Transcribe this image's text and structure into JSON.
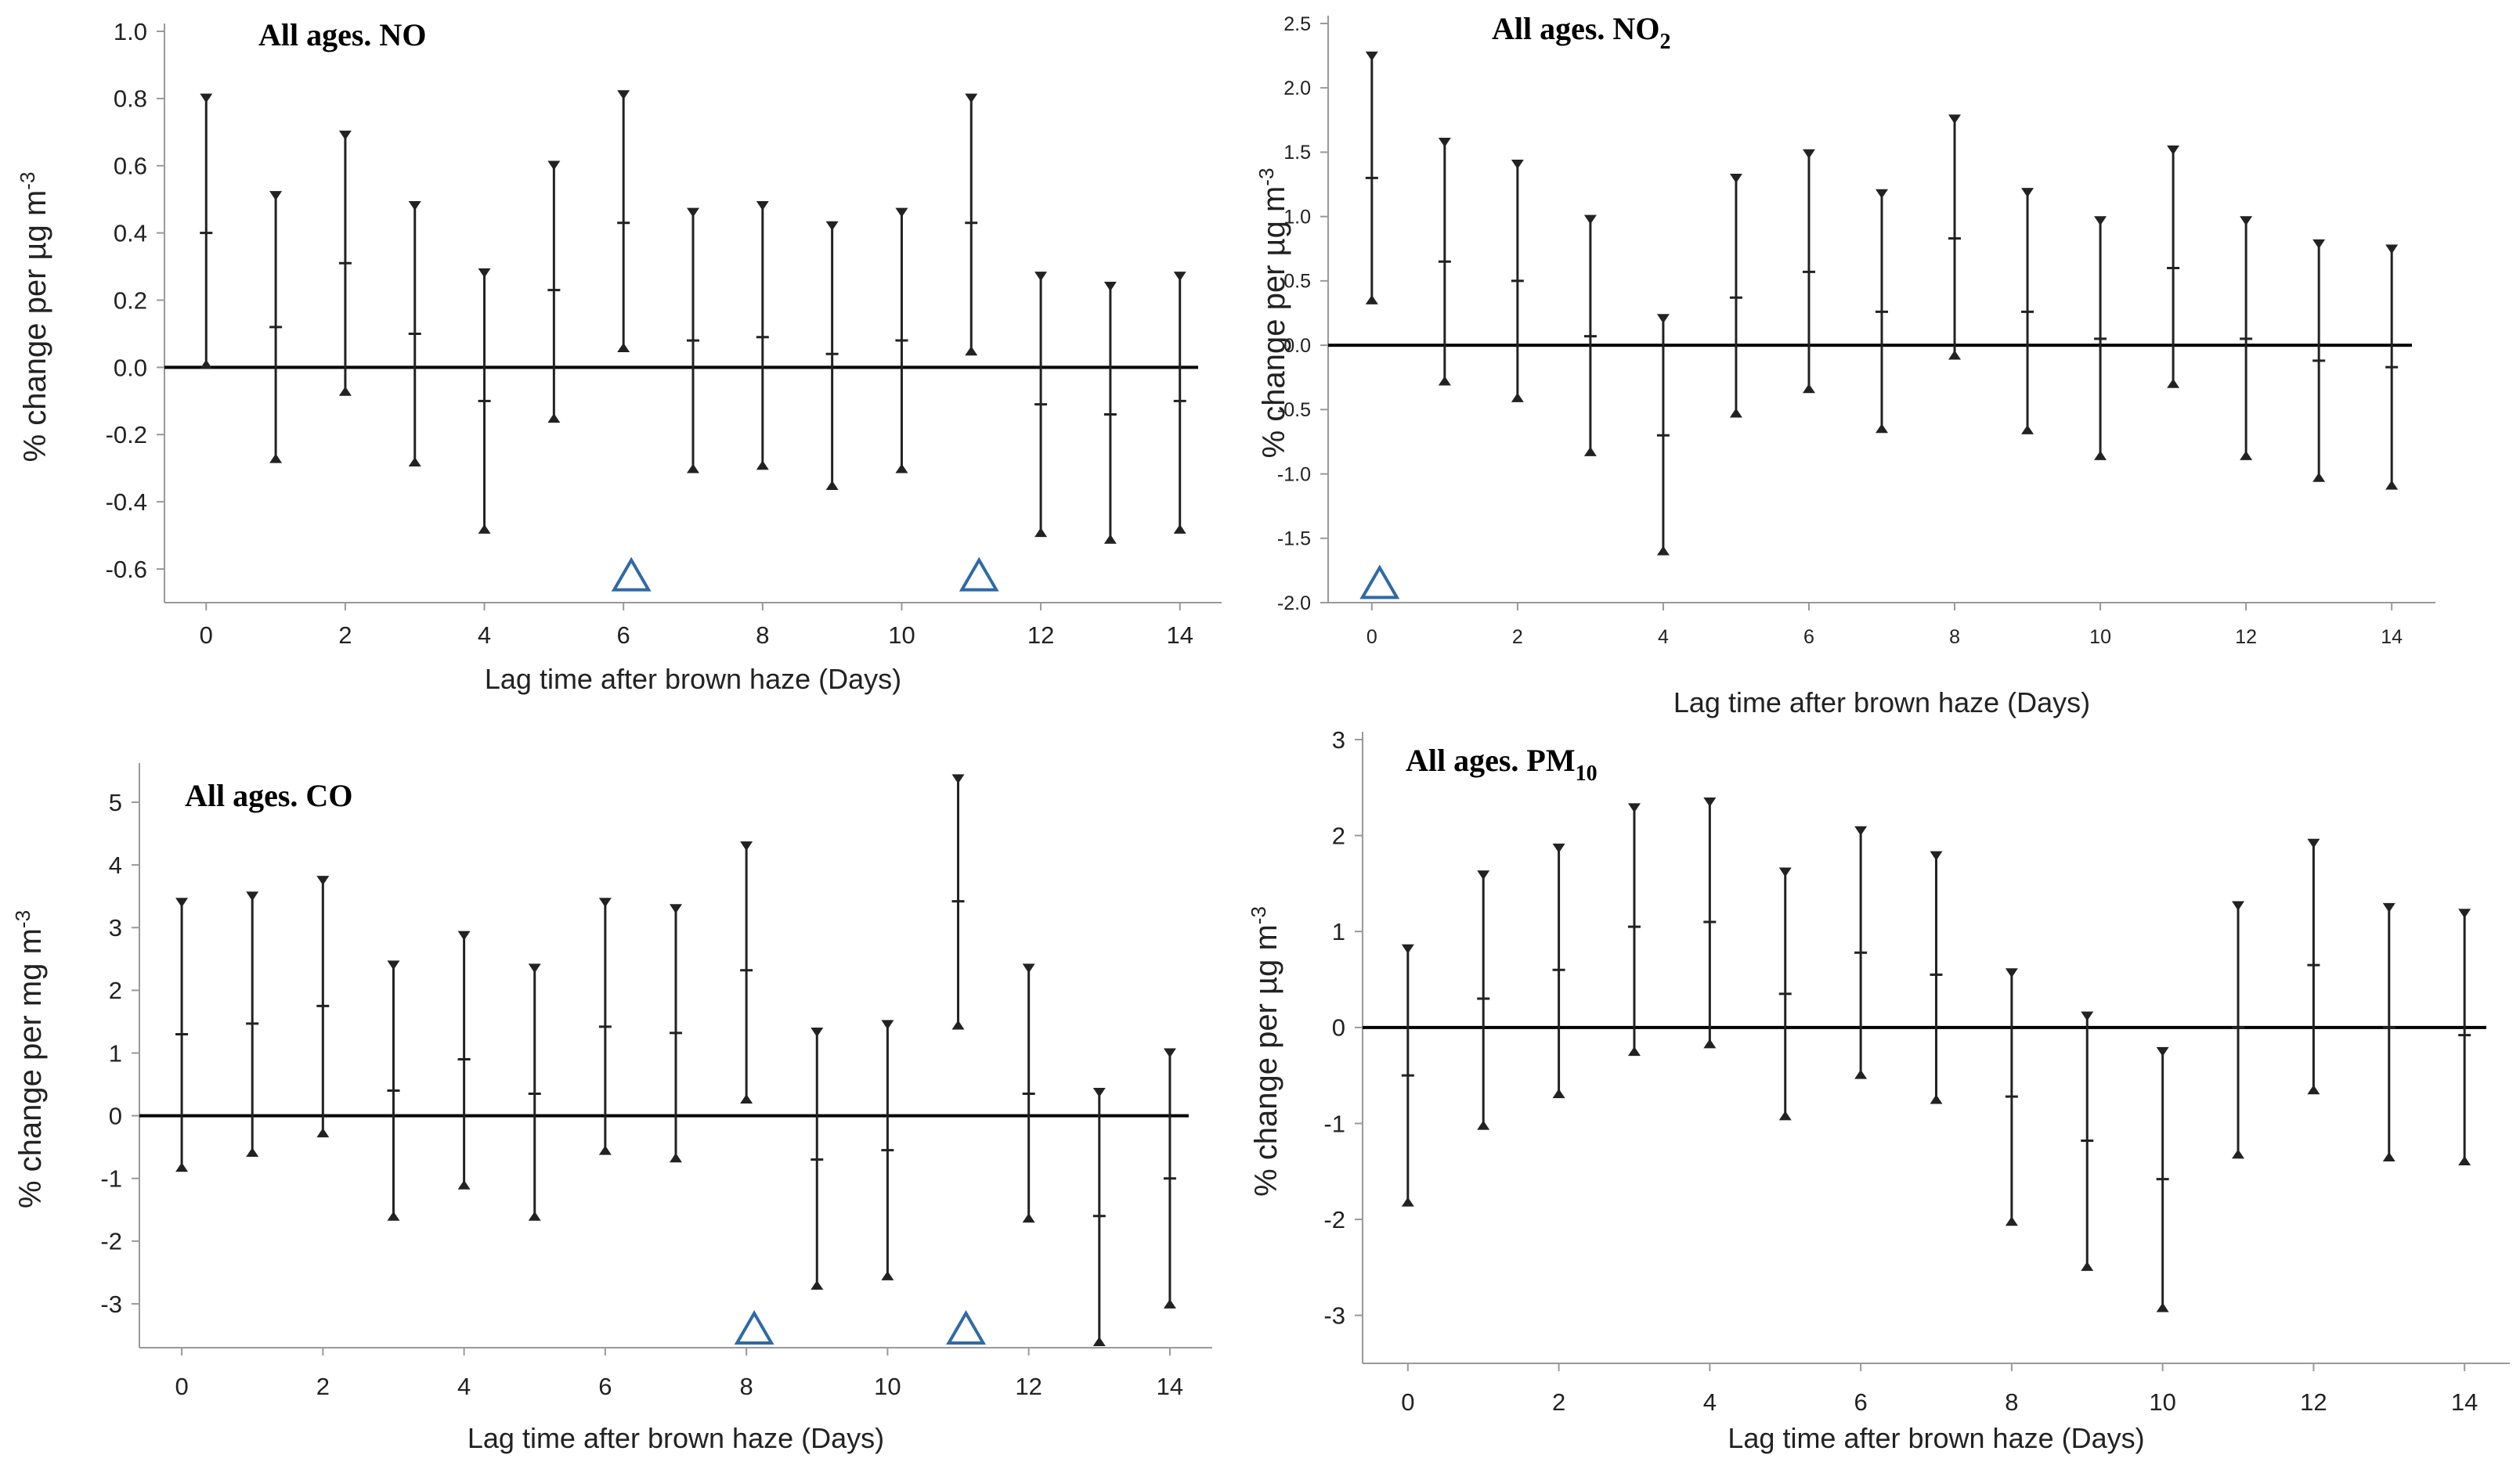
{
  "figure_caption": "",
  "chart_data": [
    {
      "type": "errorbar",
      "title": "All ages. NO",
      "title_main": "All ages. NO",
      "title_sub": "",
      "xlabel": "Lag time after brown haze (Days)",
      "ylabel": "% change per µg m",
      "ylabel_sup": "-3",
      "xticks": [
        0,
        2,
        4,
        6,
        8,
        10,
        12,
        14
      ],
      "yticks": [
        "1.0",
        "0.8",
        "0.6",
        "0.4",
        "0.2",
        "0.0",
        "-0.2",
        "-0.4",
        "-0.6"
      ],
      "ylim": [
        -0.7,
        1.0
      ],
      "xlim": [
        -0.6,
        14.6
      ],
      "x": [
        0,
        1,
        2,
        3,
        4,
        5,
        6,
        7,
        8,
        9,
        10,
        11,
        12,
        13,
        14
      ],
      "estimate": [
        0.4,
        0.12,
        0.31,
        0.1,
        -0.1,
        0.23,
        0.43,
        0.08,
        0.09,
        0.04,
        0.08,
        0.43,
        -0.11,
        -0.14,
        -0.1
      ],
      "upper": [
        0.81,
        0.52,
        0.7,
        0.49,
        0.29,
        0.61,
        0.82,
        0.47,
        0.49,
        0.43,
        0.47,
        0.81,
        0.28,
        0.25,
        0.28
      ],
      "lower": [
        0.0,
        -0.28,
        -0.08,
        -0.29,
        -0.49,
        -0.16,
        0.05,
        -0.31,
        -0.3,
        -0.36,
        -0.31,
        0.04,
        -0.5,
        -0.52,
        -0.49
      ],
      "significant_lags": [
        6,
        11
      ],
      "marker_y": -0.62,
      "grid": false,
      "accent_color": "#2e6aa6"
    },
    {
      "type": "errorbar",
      "title": "All ages. NO2",
      "title_main": "All ages. NO",
      "title_sub": "2",
      "xlabel": "Lag time after brown haze (Days)",
      "ylabel": "% change per µg m",
      "ylabel_sup": "-3",
      "xticks": [
        0,
        2,
        4,
        6,
        8,
        10,
        12,
        14
      ],
      "yticks": [
        "2.5",
        "2.0",
        "1.5",
        "1.0",
        "0.5",
        "0.0",
        "-0.5",
        "-1.0",
        "-1.5",
        "-2.0"
      ],
      "ylim": [
        -2.0,
        2.5
      ],
      "xlim": [
        -0.6,
        14.6
      ],
      "x": [
        0,
        1,
        2,
        3,
        4,
        5,
        6,
        7,
        8,
        9,
        10,
        11,
        12,
        13,
        14
      ],
      "estimate": [
        1.3,
        0.65,
        0.5,
        0.07,
        -0.7,
        0.37,
        0.57,
        0.26,
        0.83,
        0.26,
        0.05,
        0.6,
        0.05,
        -0.12,
        -0.17
      ],
      "upper": [
        2.27,
        1.6,
        1.43,
        1.0,
        0.23,
        1.32,
        1.51,
        1.2,
        1.78,
        1.21,
        0.99,
        1.54,
        0.99,
        0.81,
        0.77
      ],
      "lower": [
        0.33,
        -0.3,
        -0.43,
        -0.85,
        -1.62,
        -0.55,
        -0.36,
        -0.67,
        -0.1,
        -0.68,
        -0.88,
        -0.32,
        -0.88,
        -1.05,
        -1.11
      ],
      "significant_lags": [
        0
      ],
      "marker_y": -1.85,
      "grid": false,
      "accent_color": "#2e6aa6"
    },
    {
      "type": "errorbar",
      "title": "All ages. CO",
      "title_main": "All ages. CO",
      "title_sub": "",
      "xlabel": "Lag time after brown haze (Days)",
      "ylabel": "% change per mg m",
      "ylabel_sup": "-3",
      "xticks": [
        0,
        2,
        4,
        6,
        8,
        10,
        12,
        14
      ],
      "yticks": [
        "5",
        "4",
        "3",
        "2",
        "1",
        "0",
        "-1",
        "-2",
        "-3"
      ],
      "ylim": [
        -3.7,
        5.5
      ],
      "xlim": [
        -0.6,
        14.6
      ],
      "x": [
        0,
        1,
        2,
        3,
        4,
        5,
        6,
        7,
        8,
        9,
        10,
        11,
        12,
        13,
        14
      ],
      "estimate": [
        1.3,
        1.47,
        1.75,
        0.4,
        0.9,
        0.35,
        1.42,
        1.32,
        2.32,
        -0.7,
        -0.55,
        3.42,
        0.35,
        -1.6,
        -1.0
      ],
      "upper": [
        3.45,
        3.55,
        3.8,
        2.45,
        2.92,
        2.4,
        3.45,
        3.35,
        4.35,
        1.38,
        1.5,
        5.42,
        2.4,
        0.42,
        1.05
      ],
      "lower": [
        -0.87,
        -0.63,
        -0.32,
        -1.65,
        -1.15,
        -1.65,
        -0.6,
        -0.72,
        0.22,
        -2.75,
        -2.6,
        1.4,
        -1.68,
        -3.65,
        -3.05
      ],
      "significant_lags": [
        8,
        11
      ],
      "marker_y": -3.4,
      "grid": false,
      "accent_color": "#2e6aa6"
    },
    {
      "type": "errorbar",
      "title": "All ages. PM10",
      "title_main": "All ages. PM",
      "title_sub": "10",
      "xlabel": "Lag time after brown haze (Days)",
      "ylabel": "% change per µg m",
      "ylabel_sup": "-3",
      "xticks": [
        0,
        2,
        4,
        6,
        8,
        10,
        12,
        14
      ],
      "yticks": [
        "3",
        "2",
        "1",
        "0",
        "-1",
        "-2",
        "-3"
      ],
      "ylim": [
        -3.5,
        3.0
      ],
      "xlim": [
        -0.6,
        14.6
      ],
      "x": [
        0,
        1,
        2,
        3,
        4,
        5,
        6,
        7,
        8,
        9,
        10,
        11,
        12,
        13,
        14
      ],
      "estimate": [
        -0.5,
        0.3,
        0.6,
        1.05,
        1.1,
        0.35,
        0.78,
        0.55,
        -0.72,
        -1.18,
        -1.58,
        0.0,
        0.65,
        0.0,
        -0.08
      ],
      "upper": [
        0.85,
        1.62,
        1.9,
        2.32,
        2.38,
        1.65,
        2.08,
        1.82,
        0.6,
        0.15,
        -0.22,
        1.3,
        1.95,
        1.28,
        1.22
      ],
      "lower": [
        -1.85,
        -1.05,
        -0.72,
        -0.28,
        -0.2,
        -0.95,
        -0.52,
        -0.78,
        -2.05,
        -2.52,
        -2.95,
        -1.35,
        -0.68,
        -1.38,
        -1.42
      ],
      "significant_lags": [],
      "marker_y": null,
      "grid": false,
      "accent_color": "#2e6aa6"
    }
  ]
}
